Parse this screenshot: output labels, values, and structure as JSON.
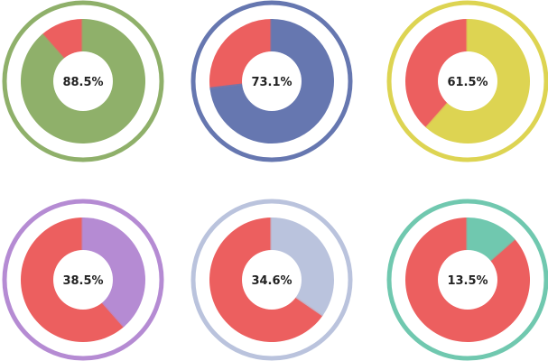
{
  "chart_data": {
    "type": "pie",
    "rest_color": "#EC5F5F",
    "charts": [
      {
        "label": "88.5%",
        "value": 88.5,
        "color": "#8FB06A"
      },
      {
        "label": "73.1%",
        "value": 73.1,
        "color": "#6677B0"
      },
      {
        "label": "61.5%",
        "value": 61.5,
        "color": "#DDD452"
      },
      {
        "label": "38.5%",
        "value": 38.5,
        "color": "#B58BD3"
      },
      {
        "label": "34.6%",
        "value": 34.6,
        "color": "#BAC3DD"
      },
      {
        "label": "13.5%",
        "value": 13.5,
        "color": "#70C8AF"
      }
    ]
  }
}
